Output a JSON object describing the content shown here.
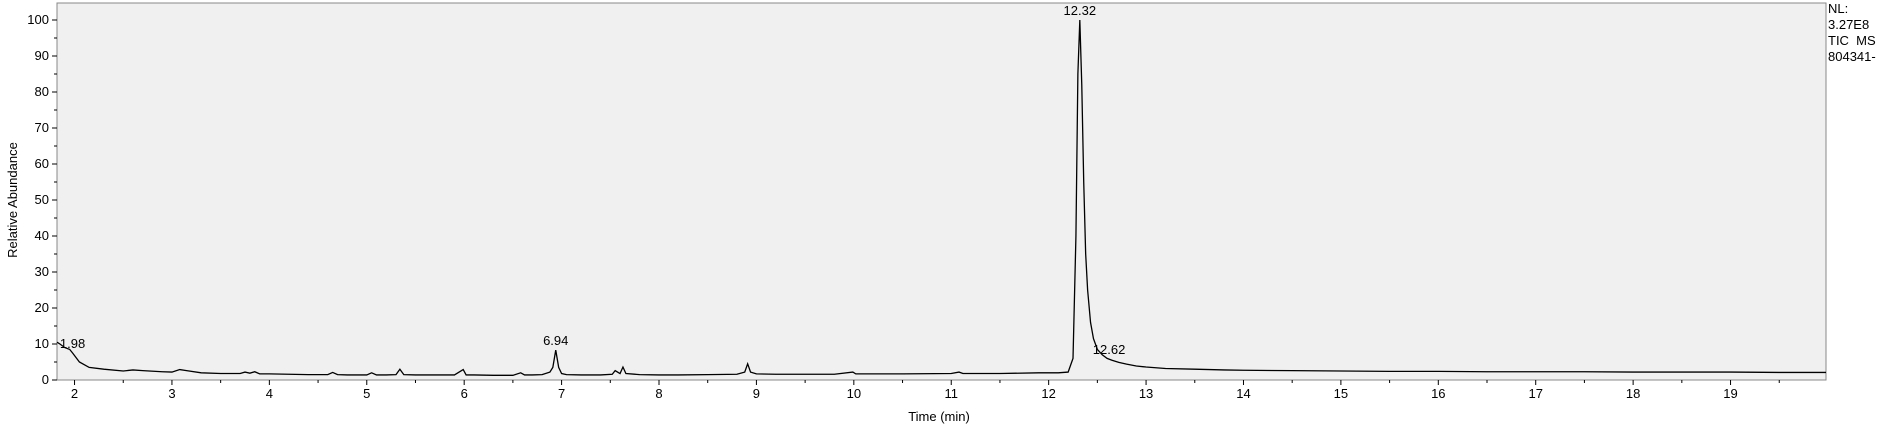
{
  "chart_data": {
    "type": "line",
    "title": "",
    "xlabel": "Time (min)",
    "ylabel": "Relative Abundance",
    "xlim": [
      1.82,
      19.98
    ],
    "ylim": [
      0,
      100
    ],
    "x_ticks": [
      2,
      3,
      4,
      5,
      6,
      7,
      8,
      9,
      10,
      11,
      12,
      13,
      14,
      15,
      16,
      17,
      18,
      19
    ],
    "y_ticks": [
      0,
      10,
      20,
      30,
      40,
      50,
      60,
      70,
      80,
      90,
      100
    ],
    "grid": false,
    "info_lines": [
      "NL:",
      "3.27E8",
      "TIC  MS",
      "804341-"
    ],
    "peak_labels": [
      {
        "text": "1.98",
        "x": 1.98,
        "y": 7.5
      },
      {
        "text": "6.94",
        "x": 6.94,
        "y": 8.3
      },
      {
        "text": "12.32",
        "x": 12.32,
        "y": 100
      },
      {
        "text": "12.62",
        "x": 12.62,
        "y": 5.8
      }
    ],
    "series": [
      {
        "x": [
          1.82,
          1.85,
          1.9,
          1.95,
          1.98,
          2.05,
          2.15,
          2.3,
          2.5,
          2.6,
          2.7,
          2.9,
          3.0,
          3.08,
          3.15,
          3.3,
          3.5,
          3.7,
          3.75,
          3.8,
          3.85,
          3.9,
          4.0,
          4.2,
          4.4,
          4.6,
          4.65,
          4.7,
          4.8,
          4.9,
          5.0,
          5.05,
          5.1,
          5.2,
          5.3,
          5.34,
          5.38,
          5.5,
          5.7,
          5.9,
          5.99,
          6.02,
          6.1,
          6.3,
          6.5,
          6.58,
          6.62,
          6.7,
          6.8,
          6.88,
          6.91,
          6.94,
          6.97,
          7.0,
          7.05,
          7.2,
          7.4,
          7.52,
          7.55,
          7.6,
          7.63,
          7.66,
          7.8,
          8.0,
          8.2,
          8.5,
          8.8,
          8.88,
          8.91,
          8.94,
          9.0,
          9.2,
          9.5,
          9.8,
          9.99,
          10.02,
          10.1,
          10.5,
          11.0,
          11.08,
          11.12,
          11.5,
          11.9,
          12.1,
          12.2,
          12.25,
          12.28,
          12.3,
          12.32,
          12.34,
          12.36,
          12.38,
          12.4,
          12.43,
          12.46,
          12.5,
          12.55,
          12.6,
          12.65,
          12.72,
          12.8,
          12.9,
          13.0,
          13.2,
          13.5,
          13.8,
          14.0,
          14.5,
          15.0,
          15.5,
          16.0,
          16.5,
          17.0,
          17.5,
          18.0,
          18.5,
          19.0,
          19.5,
          19.98
        ],
        "y": [
          10.5,
          10,
          9,
          8.5,
          7.5,
          5,
          3.5,
          3,
          2.5,
          2.8,
          2.6,
          2.3,
          2.2,
          2.9,
          2.6,
          2.0,
          1.8,
          1.8,
          2.2,
          1.9,
          2.3,
          1.7,
          1.7,
          1.6,
          1.5,
          1.5,
          2.1,
          1.5,
          1.4,
          1.4,
          1.4,
          2.0,
          1.4,
          1.4,
          1.5,
          3.0,
          1.5,
          1.4,
          1.4,
          1.4,
          2.9,
          1.4,
          1.4,
          1.3,
          1.3,
          2.0,
          1.4,
          1.4,
          1.5,
          2.2,
          3.5,
          8.3,
          3.5,
          1.8,
          1.5,
          1.4,
          1.4,
          1.6,
          2.6,
          1.8,
          3.6,
          1.8,
          1.5,
          1.4,
          1.4,
          1.5,
          1.6,
          2.2,
          4.5,
          2.2,
          1.7,
          1.6,
          1.6,
          1.6,
          2.2,
          1.7,
          1.7,
          1.7,
          1.8,
          2.2,
          1.8,
          1.8,
          2.0,
          2.0,
          2.2,
          6.0,
          40.0,
          85.0,
          100.0,
          82.0,
          55.0,
          35.0,
          25.0,
          16.0,
          11.5,
          8.5,
          7.0,
          6.0,
          5.5,
          4.9,
          4.4,
          3.9,
          3.6,
          3.2,
          3.0,
          2.8,
          2.7,
          2.6,
          2.5,
          2.4,
          2.4,
          2.3,
          2.3,
          2.3,
          2.2,
          2.2,
          2.2,
          2.1,
          2.1
        ]
      }
    ]
  }
}
